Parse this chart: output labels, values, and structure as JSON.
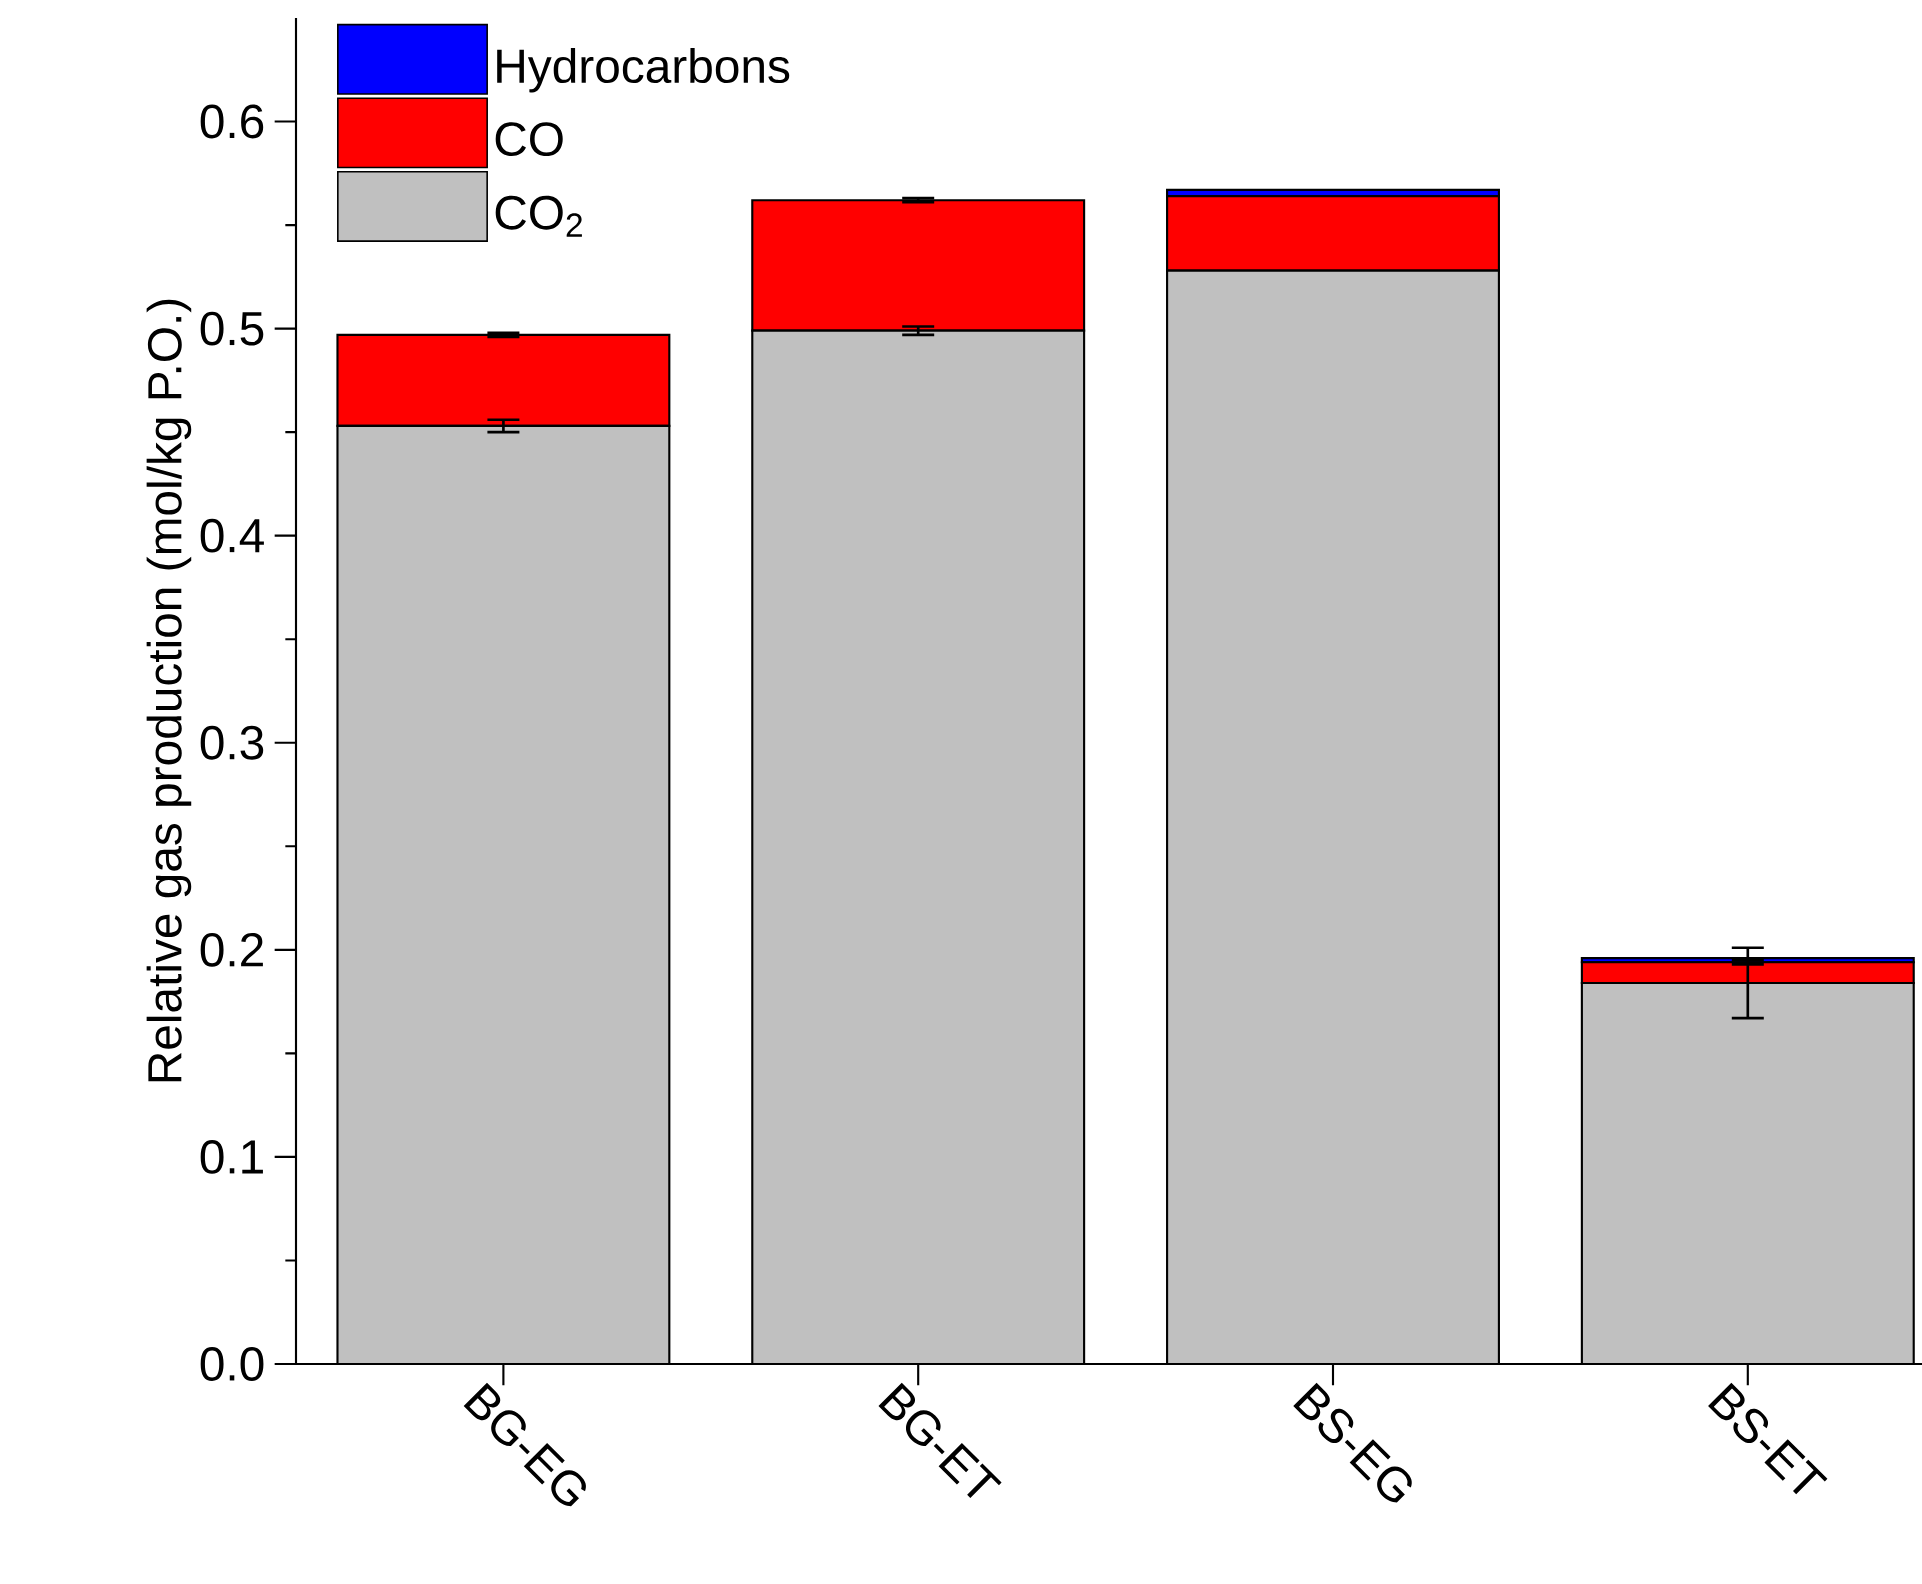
{
  "chart_data": {
    "type": "bar",
    "stacked": true,
    "ylabel": "Relative gas production (mol/kg P.O.)",
    "categories": [
      "BG-EG",
      "BG-ET",
      "BS-EG",
      "BS-ET"
    ],
    "series": [
      {
        "name": "CO$_{2}$",
        "color": "#c0c0c0",
        "values": [
          0.453,
          0.499,
          0.528,
          0.184
        ],
        "errors": [
          0.003,
          0.002,
          null,
          0.017
        ]
      },
      {
        "name": "CO",
        "color": "#ff0000",
        "values": [
          0.044,
          0.063,
          0.036,
          0.01
        ],
        "errors": [
          0.001,
          0.001,
          null,
          0.001
        ]
      },
      {
        "name": "Hydrocarbons",
        "color": "#0000ff",
        "values": [
          0,
          0,
          0.003,
          0.002
        ]
      }
    ],
    "ylim": [
      0,
      0.65
    ],
    "yticks": [
      {
        "value": 0,
        "label": "0.0"
      },
      {
        "value": 0.1,
        "label": "0.1"
      },
      {
        "value": 0.2,
        "label": "0.2"
      },
      {
        "value": 0.3,
        "label": "0.3"
      },
      {
        "value": 0.4,
        "label": "0.4"
      },
      {
        "value": 0.5,
        "label": "0.5"
      },
      {
        "value": 0.6,
        "label": "0.6"
      }
    ],
    "legend": "top left",
    "grid": false
  }
}
